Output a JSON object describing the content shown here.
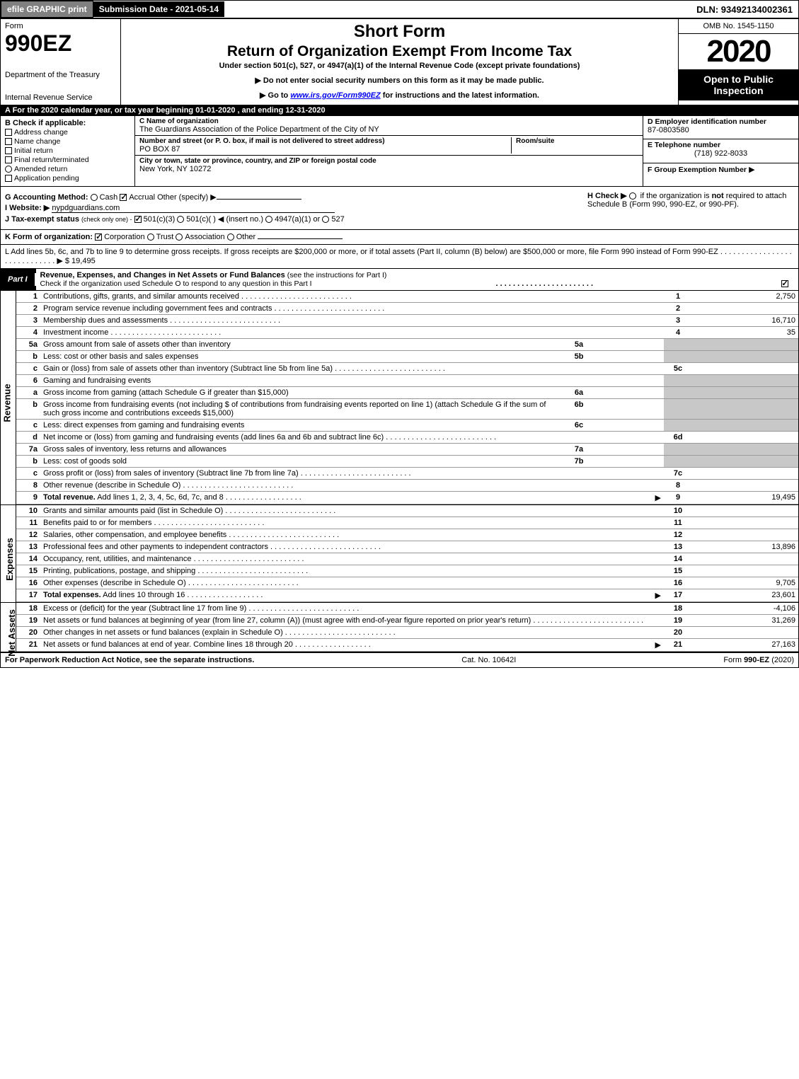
{
  "topbar": {
    "efile": "efile GRAPHIC print",
    "submission_label": "Submission Date - 2021-05-14",
    "dln": "DLN: 93492134002361"
  },
  "header": {
    "form_word": "Form",
    "form_number": "990EZ",
    "dept": "Department of the Treasury",
    "irs": "Internal Revenue Service",
    "short_form": "Short Form",
    "return_title": "Return of Organization Exempt From Income Tax",
    "under": "Under section 501(c), 527, or 4947(a)(1) of the Internal Revenue Code (except private foundations)",
    "bullet1": "▶ Do not enter social security numbers on this form as it may be made public.",
    "bullet2_pre": "▶ Go to ",
    "bullet2_link": "www.irs.gov/Form990EZ",
    "bullet2_post": " for instructions and the latest information.",
    "omb": "OMB No. 1545-1150",
    "year": "2020",
    "open_to": "Open to Public Inspection"
  },
  "sectionA": "A  For the 2020 calendar year, or tax year beginning 01-01-2020 , and ending 12-31-2020",
  "B": {
    "title": "B  Check if applicable:",
    "opts": [
      "Address change",
      "Name change",
      "Initial return",
      "Final return/terminated",
      "Amended return",
      "Application pending"
    ]
  },
  "C": {
    "name_label": "C Name of organization",
    "name": "The Guardians Association of the Police Department of the City of NY",
    "street_label": "Number and street (or P. O. box, if mail is not delivered to street address)",
    "street": "PO BOX 87",
    "roomsuite_label": "Room/suite",
    "roomsuite": "",
    "city_label": "City or town, state or province, country, and ZIP or foreign postal code",
    "city": "New York, NY  10272"
  },
  "D": {
    "ein_label": "D Employer identification number",
    "ein": "87-0803580",
    "tel_label": "E Telephone number",
    "tel": "(718) 922-8033",
    "group_label": "F Group Exemption Number",
    "group_arrow": "▶"
  },
  "G": {
    "label": "G Accounting Method:",
    "cash": "Cash",
    "accrual": "Accrual",
    "other": "Other (specify) ▶"
  },
  "H": {
    "label": "H  Check ▶",
    "text": "if the organization is not required to attach Schedule B (Form 990, 990-EZ, or 990-PF).",
    "not": "not"
  },
  "I": {
    "label": "I Website: ▶",
    "value": "nypdguardians.com"
  },
  "J": {
    "label": "J Tax-exempt status",
    "sub": "(check only one) -",
    "o1": "501(c)(3)",
    "o2": "501(c)(  )",
    "insert": "◀ (insert no.)",
    "o3": "4947(a)(1) or",
    "o4": "527"
  },
  "K": {
    "label": "K Form of organization:",
    "opts": [
      "Corporation",
      "Trust",
      "Association",
      "Other"
    ],
    "checked": 0
  },
  "L": {
    "text1": "L Add lines 5b, 6c, and 7b to line 9 to determine gross receipts. If gross receipts are $200,000 or more, or if total assets (Part II, column (B) below) are $500,000 or more, file Form 990 instead of Form 990-EZ",
    "amount": "$ 19,495"
  },
  "partI": {
    "label": "Part I",
    "title": "Revenue, Expenses, and Changes in Net Assets or Fund Balances",
    "sub": "(see the instructions for Part I)",
    "checkline": "Check if the organization used Schedule O to respond to any question in this Part I",
    "checked": true
  },
  "sections": {
    "revenue": "Revenue",
    "expenses": "Expenses",
    "netassets": "Net Assets"
  },
  "lines": [
    {
      "n": "1",
      "d": "Contributions, gifts, grants, and similar amounts received",
      "num": "1",
      "val": "2,750"
    },
    {
      "n": "2",
      "d": "Program service revenue including government fees and contracts",
      "num": "2",
      "val": ""
    },
    {
      "n": "3",
      "d": "Membership dues and assessments",
      "num": "3",
      "val": "16,710"
    },
    {
      "n": "4",
      "d": "Investment income",
      "num": "4",
      "val": "35"
    },
    {
      "n": "5a",
      "d": "Gross amount from sale of assets other than inventory",
      "inum": "5a",
      "ival": "",
      "grey": true
    },
    {
      "n": "b",
      "d": "Less: cost or other basis and sales expenses",
      "inum": "5b",
      "ival": "",
      "grey": true
    },
    {
      "n": "c",
      "d": "Gain or (loss) from sale of assets other than inventory (Subtract line 5b from line 5a)",
      "num": "5c",
      "val": ""
    },
    {
      "n": "6",
      "d": "Gaming and fundraising events",
      "grey": true,
      "noNum": true
    },
    {
      "n": "a",
      "d": "Gross income from gaming (attach Schedule G if greater than $15,000)",
      "inum": "6a",
      "ival": "",
      "grey": true
    },
    {
      "n": "b",
      "d": "Gross income from fundraising events (not including $                      of contributions from fundraising events reported on line 1) (attach Schedule G if the sum of such gross income and contributions exceeds $15,000)",
      "inum": "6b",
      "ival": "",
      "grey": true
    },
    {
      "n": "c",
      "d": "Less: direct expenses from gaming and fundraising events",
      "inum": "6c",
      "ival": "",
      "grey": true
    },
    {
      "n": "d",
      "d": "Net income or (loss) from gaming and fundraising events (add lines 6a and 6b and subtract line 6c)",
      "num": "6d",
      "val": ""
    },
    {
      "n": "7a",
      "d": "Gross sales of inventory, less returns and allowances",
      "inum": "7a",
      "ival": "",
      "grey": true
    },
    {
      "n": "b",
      "d": "Less: cost of goods sold",
      "inum": "7b",
      "ival": "",
      "grey": true
    },
    {
      "n": "c",
      "d": "Gross profit or (loss) from sales of inventory (Subtract line 7b from line 7a)",
      "num": "7c",
      "val": ""
    },
    {
      "n": "8",
      "d": "Other revenue (describe in Schedule O)",
      "num": "8",
      "val": ""
    },
    {
      "n": "9",
      "d": "Total revenue. Add lines 1, 2, 3, 4, 5c, 6d, 7c, and 8",
      "num": "9",
      "val": "19,495",
      "bold": true,
      "arrow": true
    }
  ],
  "expenses": [
    {
      "n": "10",
      "d": "Grants and similar amounts paid (list in Schedule O)",
      "num": "10",
      "val": ""
    },
    {
      "n": "11",
      "d": "Benefits paid to or for members",
      "num": "11",
      "val": ""
    },
    {
      "n": "12",
      "d": "Salaries, other compensation, and employee benefits",
      "num": "12",
      "val": ""
    },
    {
      "n": "13",
      "d": "Professional fees and other payments to independent contractors",
      "num": "13",
      "val": "13,896"
    },
    {
      "n": "14",
      "d": "Occupancy, rent, utilities, and maintenance",
      "num": "14",
      "val": ""
    },
    {
      "n": "15",
      "d": "Printing, publications, postage, and shipping",
      "num": "15",
      "val": ""
    },
    {
      "n": "16",
      "d": "Other expenses (describe in Schedule O)",
      "num": "16",
      "val": "9,705"
    },
    {
      "n": "17",
      "d": "Total expenses. Add lines 10 through 16",
      "num": "17",
      "val": "23,601",
      "bold": true,
      "arrow": true
    }
  ],
  "netassets": [
    {
      "n": "18",
      "d": "Excess or (deficit) for the year (Subtract line 17 from line 9)",
      "num": "18",
      "val": "-4,106"
    },
    {
      "n": "19",
      "d": "Net assets or fund balances at beginning of year (from line 27, column (A)) (must agree with end-of-year figure reported on prior year's return)",
      "num": "19",
      "val": "31,269",
      "greyTop": true
    },
    {
      "n": "20",
      "d": "Other changes in net assets or fund balances (explain in Schedule O)",
      "num": "20",
      "val": ""
    },
    {
      "n": "21",
      "d": "Net assets or fund balances at end of year. Combine lines 18 through 20",
      "num": "21",
      "val": "27,163",
      "arrow": true
    }
  ],
  "footer": {
    "left": "For Paperwork Reduction Act Notice, see the separate instructions.",
    "center": "Cat. No. 10642I",
    "right_pre": "Form ",
    "right_bold": "990-EZ",
    "right_post": " (2020)"
  }
}
